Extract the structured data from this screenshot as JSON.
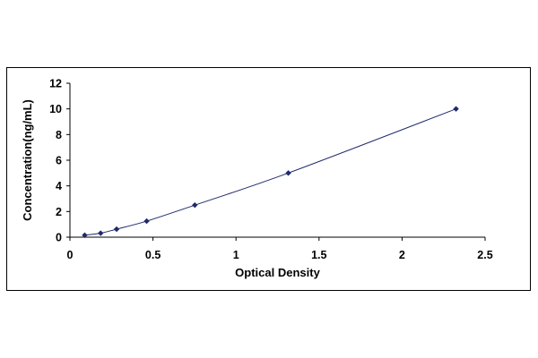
{
  "chart_data": {
    "type": "scatter",
    "title": "",
    "xlabel": "Optical Density",
    "ylabel": "Concentration(ng/mL)",
    "xlim": [
      0,
      2.5
    ],
    "ylim": [
      0,
      12
    ],
    "x_ticks": [
      "0",
      "0.5",
      "1",
      "1.5",
      "2",
      "2.5"
    ],
    "y_ticks": [
      "0",
      "2",
      "4",
      "6",
      "8",
      "10",
      "12"
    ],
    "grid": false,
    "legend": "none",
    "series": [
      {
        "marker": "diamond",
        "trendline": true,
        "color": "#1f2a6b",
        "x": [
          0.089,
          0.185,
          0.281,
          0.462,
          0.752,
          1.315,
          2.325
        ],
        "y": [
          0.156,
          0.312,
          0.625,
          1.25,
          2.5,
          5,
          10
        ]
      }
    ]
  }
}
